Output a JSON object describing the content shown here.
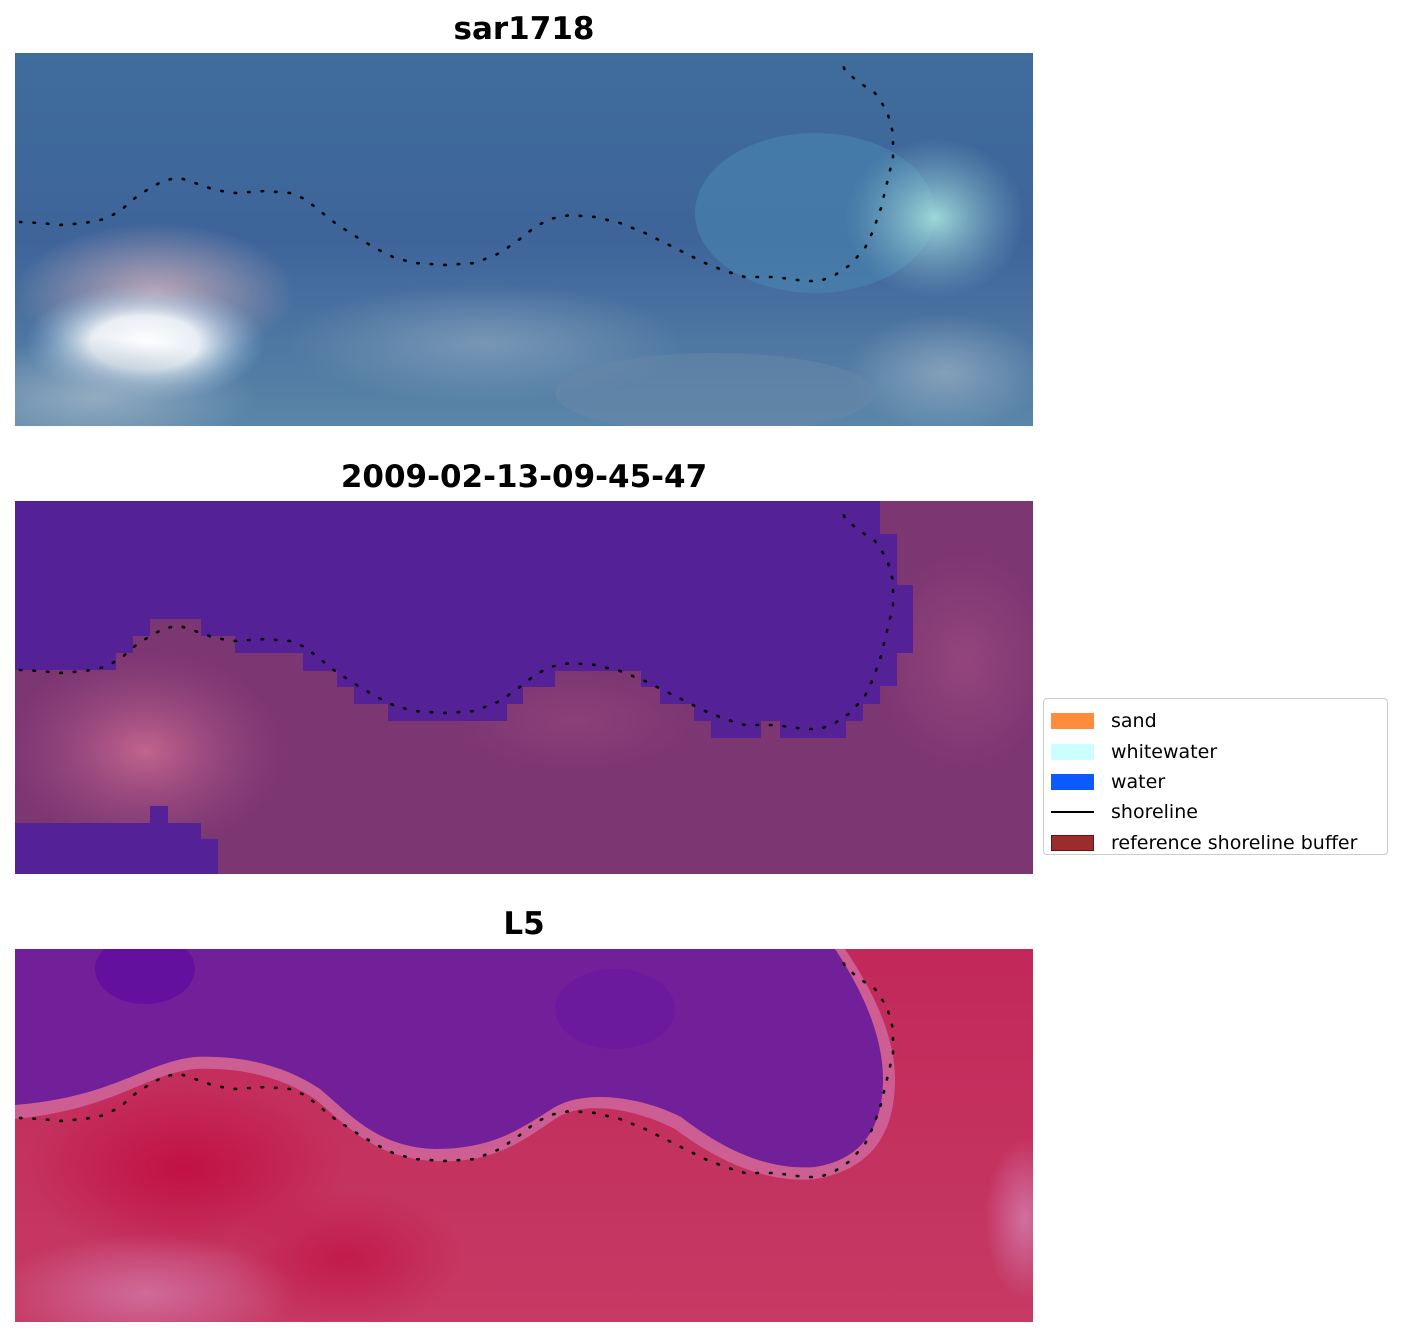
{
  "panels": [
    {
      "title": "sar1718",
      "name": "panel-sar1718",
      "palette": [
        "#3c6496",
        "#3f689a",
        "#4a78a6",
        "#3b5f92"
      ]
    },
    {
      "title": "2009-02-13-09-45-47",
      "name": "panel-classification",
      "palette": [
        "#542296",
        "#7a3474",
        "#843c78",
        "#6e2e70"
      ]
    },
    {
      "title": "L5",
      "name": "panel-l5",
      "palette": [
        "#6e1c96",
        "#7a22a0",
        "#c02a5e",
        "#b8285a"
      ]
    }
  ],
  "legend": {
    "items": [
      {
        "label": "sand",
        "color": "#ff8c3c",
        "kind": "patch"
      },
      {
        "label": "whitewater",
        "color": "#ccffff",
        "kind": "patch"
      },
      {
        "label": "water",
        "color": "#0a5aff",
        "kind": "patch"
      },
      {
        "label": "shoreline",
        "color": "#000000",
        "kind": "line"
      },
      {
        "label": "reference shoreline buffer",
        "color": "#9b2c2c",
        "kind": "patch"
      }
    ]
  }
}
